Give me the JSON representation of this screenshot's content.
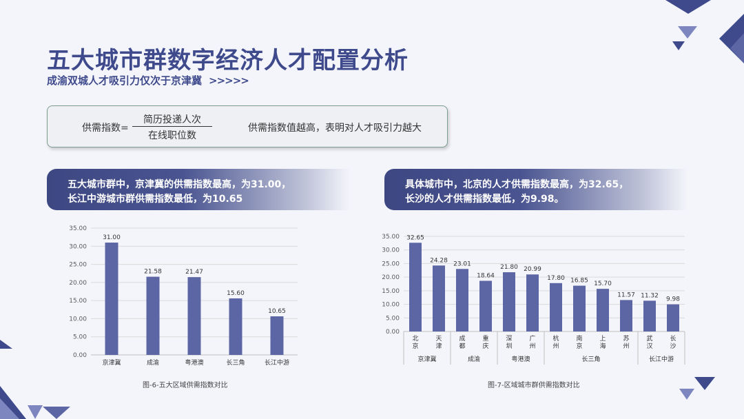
{
  "header": {
    "title": "五大城市群数字经济人才配置分析",
    "subtitle": "成渝双城人才吸引力仅次于京津冀",
    "subtitle_arrows": ">>>>>"
  },
  "formula": {
    "lhs": "供需指数=",
    "numerator": "简历投递人次",
    "denominator": "在线职位数",
    "note": "供需指数值越高，表明对人才吸引力越大"
  },
  "banners": {
    "left_line1": "五大城市群中，京津冀的供需指数最高，为31.00，",
    "left_line2": "长江中游城市群供需指数最低，为10.65",
    "right_line1": "具体城市中，北京的人才供需指数最高，为32.65，",
    "right_line2": "长沙的人才供需指数最低，为9.98。"
  },
  "colors": {
    "accent": "#3f4a8c",
    "bar": "#5d66a4",
    "grid": "#d9d9d9"
  },
  "chart_data": [
    {
      "type": "bar",
      "categories": [
        "京津冀",
        "成渝",
        "粤港澳",
        "长三角",
        "长江中游"
      ],
      "values": [
        31.0,
        21.58,
        21.47,
        15.6,
        10.65
      ],
      "data_labels": [
        "31.00",
        "21.58",
        "21.47",
        "15.60",
        "10.65"
      ],
      "yticks": [
        "0.00",
        "5.00",
        "10.00",
        "15.00",
        "20.00",
        "25.00",
        "30.00",
        "35.00"
      ],
      "ylim": [
        0,
        35
      ],
      "grid": true,
      "caption": "图-6-五大区域供需指数对比"
    },
    {
      "type": "bar",
      "categories": [
        "北京",
        "天津",
        "成都",
        "重庆",
        "深圳",
        "广州",
        "杭州",
        "南京",
        "上海",
        "苏州",
        "武汉",
        "长沙"
      ],
      "values": [
        32.65,
        24.28,
        23.01,
        18.64,
        21.8,
        20.99,
        17.8,
        16.85,
        15.7,
        11.57,
        11.32,
        9.98
      ],
      "data_labels": [
        "32.65",
        "24.28",
        "23.01",
        "18.64",
        "21.80",
        "20.99",
        "17.80",
        "16.85",
        "15.70",
        "11.57",
        "11.32",
        "9.98"
      ],
      "groups": [
        {
          "name": "京津冀",
          "count": 2
        },
        {
          "name": "成渝",
          "count": 2
        },
        {
          "name": "粤港澳",
          "count": 2
        },
        {
          "name": "长三角",
          "count": 4
        },
        {
          "name": "长江中游",
          "count": 2
        }
      ],
      "yticks": [
        "0.00",
        "5.00",
        "10.00",
        "15.00",
        "20.00",
        "25.00",
        "30.00",
        "35.00"
      ],
      "ylim": [
        0,
        35
      ],
      "grid": true,
      "caption": "图-7-区域城市群供需指数对比"
    }
  ]
}
